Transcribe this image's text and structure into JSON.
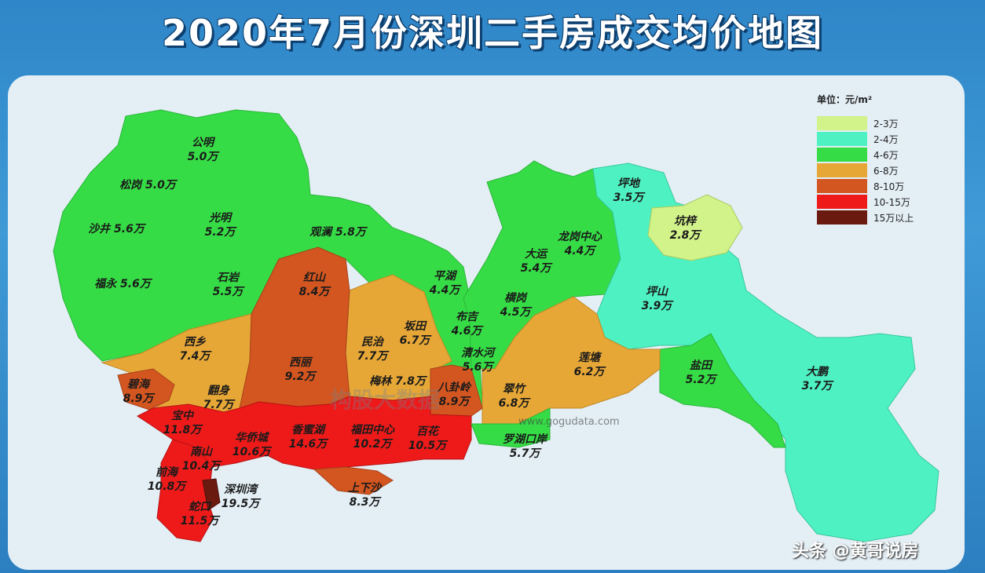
{
  "title": "2020年7月份深圳二手房成交均价地图",
  "legend": {
    "unit": "单位：元/m²",
    "items": [
      {
        "label": "2-3万",
        "color": "#d2f28a"
      },
      {
        "label": "2-4万",
        "color": "#4ef2c2"
      },
      {
        "label": "4-6万",
        "color": "#36dc46"
      },
      {
        "label": "6-8万",
        "color": "#e6a737"
      },
      {
        "label": "8-10万",
        "color": "#d35620"
      },
      {
        "label": "10-15万",
        "color": "#ee1a1a"
      },
      {
        "label": "15万以上",
        "color": "#6b1a10"
      }
    ]
  },
  "districts": [
    {
      "id": "gongming",
      "name": "公明",
      "price": "5.0万",
      "tier": "4-6万"
    },
    {
      "id": "songgang",
      "name": "松岗",
      "price": "5.0万",
      "tier": "4-6万",
      "inline": true
    },
    {
      "id": "shajing",
      "name": "沙井",
      "price": "5.6万",
      "tier": "4-6万",
      "inline": true
    },
    {
      "id": "guangming",
      "name": "光明",
      "price": "5.2万",
      "tier": "4-6万"
    },
    {
      "id": "guanlan",
      "name": "观澜",
      "price": "5.8万",
      "tier": "4-6万",
      "inline": true
    },
    {
      "id": "fuyong",
      "name": "福永",
      "price": "5.6万",
      "tier": "4-6万",
      "inline": true
    },
    {
      "id": "shiyan",
      "name": "石岩",
      "price": "5.5万",
      "tier": "4-6万"
    },
    {
      "id": "hongshan",
      "name": "红山",
      "price": "8.4万",
      "tier": "8-10万"
    },
    {
      "id": "pinghu",
      "name": "平湖",
      "price": "4.4万",
      "tier": "4-6万"
    },
    {
      "id": "dayun",
      "name": "大运",
      "price": "5.4万",
      "tier": "4-6万"
    },
    {
      "id": "longgangzx",
      "name": "龙岗中心",
      "price": "4.4万",
      "tier": "4-6万"
    },
    {
      "id": "pingdi",
      "name": "坪地",
      "price": "3.5万",
      "tier": "2-4万"
    },
    {
      "id": "kengzi",
      "name": "坑梓",
      "price": "2.8万",
      "tier": "2-3万"
    },
    {
      "id": "pingshan",
      "name": "坪山",
      "price": "3.9万",
      "tier": "2-4万"
    },
    {
      "id": "xixiang",
      "name": "西乡",
      "price": "7.4万",
      "tier": "6-8万"
    },
    {
      "id": "xili",
      "name": "西丽",
      "price": "9.2万",
      "tier": "8-10万"
    },
    {
      "id": "minzhi",
      "name": "民治",
      "price": "7.7万",
      "tier": "6-8万"
    },
    {
      "id": "bantian",
      "name": "坂田",
      "price": "6.7万",
      "tier": "6-8万"
    },
    {
      "id": "buji",
      "name": "布吉",
      "price": "4.6万",
      "tier": "4-6万"
    },
    {
      "id": "henggang",
      "name": "横岗",
      "price": "4.5万",
      "tier": "4-6万"
    },
    {
      "id": "qingshuihe",
      "name": "清水河",
      "price": "5.6万",
      "tier": "4-6万"
    },
    {
      "id": "liantang",
      "name": "莲塘",
      "price": "6.2万",
      "tier": "6-8万"
    },
    {
      "id": "meilin",
      "name": "梅林",
      "price": "7.8万",
      "tier": "6-8万",
      "inline": true
    },
    {
      "id": "bihai",
      "name": "碧海",
      "price": "8.9万",
      "tier": "8-10万"
    },
    {
      "id": "fanshen",
      "name": "翻身",
      "price": "7.7万",
      "tier": "6-8万"
    },
    {
      "id": "baguaLing",
      "name": "八卦岭",
      "price": "8.9万",
      "tier": "8-10万"
    },
    {
      "id": "cuizhu",
      "name": "翠竹",
      "price": "6.8万",
      "tier": "6-8万"
    },
    {
      "id": "yantian",
      "name": "盐田",
      "price": "5.2万",
      "tier": "4-6万"
    },
    {
      "id": "dapeng",
      "name": "大鹏",
      "price": "3.7万",
      "tier": "2-4万"
    },
    {
      "id": "baozhong",
      "name": "宝中",
      "price": "11.8万",
      "tier": "10-15万"
    },
    {
      "id": "huaqiaocheng",
      "name": "华侨城",
      "price": "10.6万",
      "tier": "10-15万"
    },
    {
      "id": "xiangmihu",
      "name": "香蜜湖",
      "price": "14.6万",
      "tier": "10-15万"
    },
    {
      "id": "futianzx",
      "name": "福田中心",
      "price": "10.2万",
      "tier": "10-15万"
    },
    {
      "id": "baihua",
      "name": "百花",
      "price": "10.5万",
      "tier": "10-15万"
    },
    {
      "id": "luohukouan",
      "name": "罗湖口岸",
      "price": "5.7万",
      "tier": "4-6万"
    },
    {
      "id": "nanshan",
      "name": "南山",
      "price": "10.4万",
      "tier": "10-15万"
    },
    {
      "id": "qianhai",
      "name": "前海",
      "price": "10.8万",
      "tier": "10-15万"
    },
    {
      "id": "shenzhenwan",
      "name": "深圳湾",
      "price": "19.5万",
      "tier": "15万以上"
    },
    {
      "id": "shangxiasha",
      "name": "上下沙",
      "price": "8.3万",
      "tier": "8-10万"
    },
    {
      "id": "shekou",
      "name": "蛇口",
      "price": "11.5万",
      "tier": "10-15万"
    }
  ],
  "watermark": "构股大数据",
  "watermark_url": "www.gogudata.com",
  "credit": "头条 @黄哥说房"
}
